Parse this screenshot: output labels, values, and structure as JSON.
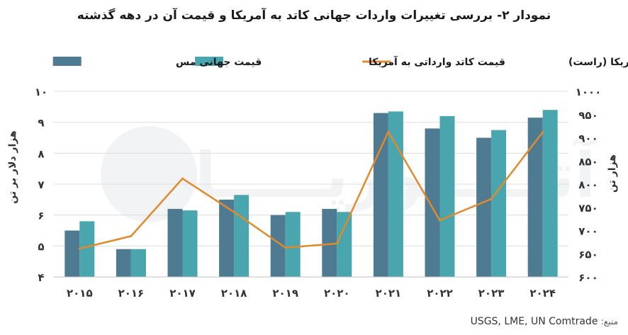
{
  "title": "نمودار ۲- بررسی تغییرات واردات جهانی کاتد به آمریکا و قیمت آن در دهه گذشته",
  "source_label": "منبع:",
  "source_text": "USGS, LME, UN Comtrade",
  "watermark": "آتــــــورپـــــادا",
  "colors": {
    "copper_price": "#4f7b92",
    "cathode_import_price": "#4aa6ae",
    "import_volume": "#e08a2c",
    "grid": "#dcdcdc",
    "axis_text": "#333333"
  },
  "chart_data": {
    "type": "bar",
    "categories": [
      "۲۰۱۵",
      "۲۰۱۶",
      "۲۰۱۷",
      "۲۰۱۸",
      "۲۰۱۹",
      "۲۰۲۰",
      "۲۰۲۱",
      "۲۰۲۲",
      "۲۰۲۳",
      "۲۰۲۴"
    ],
    "series": [
      {
        "name": "قیمت جهانی مس",
        "type": "bar",
        "axis": "left",
        "values": [
          5.5,
          4.9,
          6.2,
          6.5,
          6.0,
          6.2,
          9.3,
          8.8,
          8.5,
          9.15
        ]
      },
      {
        "name": "قیمت کاتد وارداتی به آمریکا",
        "type": "bar",
        "axis": "left",
        "values": [
          5.8,
          4.9,
          6.15,
          6.65,
          6.1,
          6.1,
          9.35,
          9.2,
          8.75,
          9.4
        ]
      },
      {
        "name": "حجم واردات کاتد به آمریکا (راست)",
        "type": "line",
        "axis": "right",
        "values": [
          661,
          688,
          812,
          740,
          663,
          672,
          913,
          722,
          768,
          912
        ]
      }
    ],
    "y_left": {
      "label": "هزار دلار بر تن",
      "ylim": [
        4,
        10
      ],
      "ticks": [
        4,
        5,
        6,
        7,
        8,
        9,
        10
      ],
      "tick_labels": [
        "۴",
        "۵",
        "۶",
        "۷",
        "۸",
        "۹",
        "۱۰"
      ]
    },
    "y_right": {
      "label": "هزار تن",
      "ylim": [
        600,
        1000
      ],
      "ticks": [
        600,
        650,
        700,
        750,
        800,
        850,
        900,
        950,
        1000
      ],
      "tick_labels": [
        "۶۰۰",
        "۶۵۰",
        "۷۰۰",
        "۷۵۰",
        "۸۰۰",
        "۸۵۰",
        "۹۰۰",
        "۹۵۰",
        "۱۰۰۰"
      ]
    },
    "grid": true,
    "legend_position": "top"
  }
}
